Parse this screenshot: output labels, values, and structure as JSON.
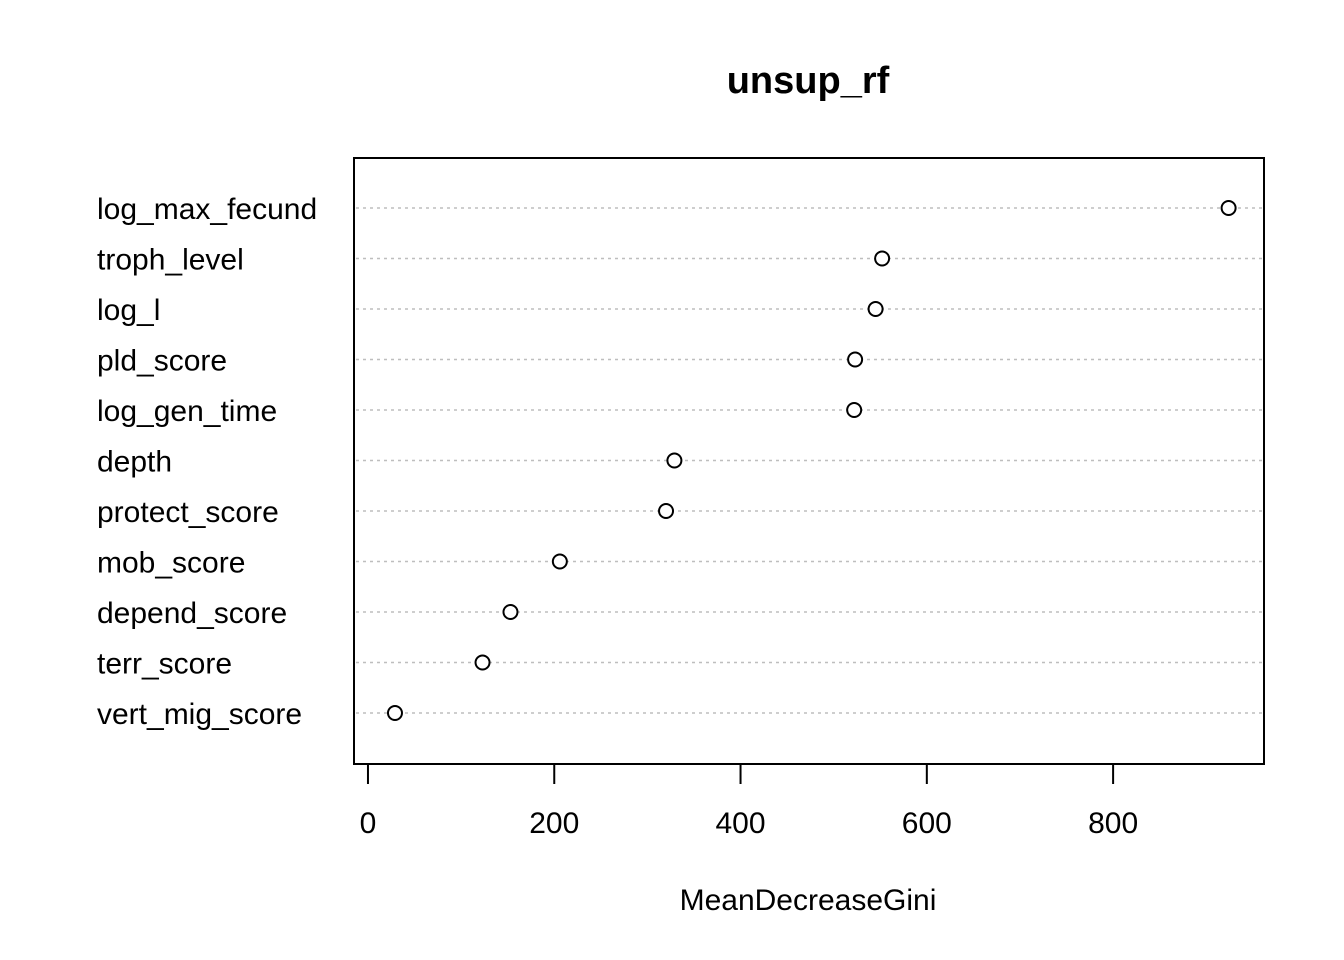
{
  "chart_data": {
    "type": "scatter",
    "subtype": "dotchart",
    "title": "unsup_rf",
    "xlabel": "MeanDecreaseGini",
    "ylabel": "",
    "xlim": [
      -15,
      962
    ],
    "xticks": [
      0,
      200,
      400,
      600,
      800
    ],
    "grid": "horizontal dotted",
    "categories": [
      "log_max_fecund",
      "troph_level",
      "log_l",
      "pld_score",
      "log_gen_time",
      "depth",
      "protect_score",
      "mob_score",
      "depend_score",
      "terr_score",
      "vert_mig_score"
    ],
    "values": [
      924,
      552,
      545,
      523,
      522,
      329,
      320,
      206,
      153,
      123,
      29
    ]
  }
}
